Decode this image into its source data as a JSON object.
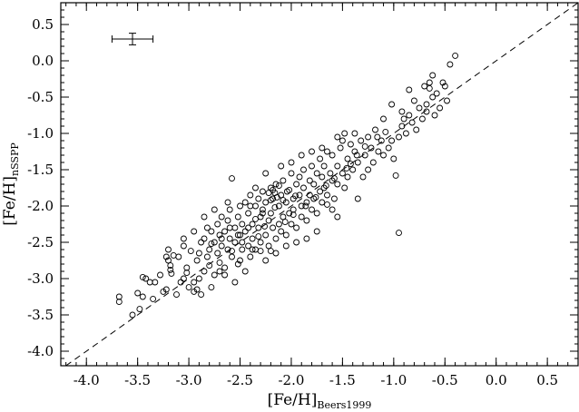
{
  "chart_data": {
    "type": "scatter",
    "xlabel": {
      "main": "[Fe/H]",
      "sub": "Beers1999"
    },
    "ylabel": {
      "main": "[Fe/H]",
      "sub": "nSSPP"
    },
    "xlim": [
      -4.25,
      0.8
    ],
    "ylim": [
      -4.2,
      0.8
    ],
    "x_ticks": [
      {
        "value": -4.0,
        "label": "-4.0"
      },
      {
        "value": -3.5,
        "label": "-3.5"
      },
      {
        "value": -3.0,
        "label": "-3.0"
      },
      {
        "value": -2.5,
        "label": "-2.5"
      },
      {
        "value": -2.0,
        "label": "-2.0"
      },
      {
        "value": -1.5,
        "label": "-1.5"
      },
      {
        "value": -1.0,
        "label": "-1.0"
      },
      {
        "value": -0.5,
        "label": "-0.5"
      },
      {
        "value": 0.0,
        "label": "0.0"
      },
      {
        "value": 0.5,
        "label": "0.5"
      }
    ],
    "y_ticks": [
      {
        "value": 0.5,
        "label": "0.5"
      },
      {
        "value": 0.0,
        "label": "0.0"
      },
      {
        "value": -0.5,
        "label": "-0.5"
      },
      {
        "value": -1.0,
        "label": "-1.0"
      },
      {
        "value": -1.5,
        "label": "-1.5"
      },
      {
        "value": -2.0,
        "label": "-2.0"
      },
      {
        "value": -2.5,
        "label": "-2.5"
      },
      {
        "value": -3.0,
        "label": "-3.0"
      },
      {
        "value": -3.5,
        "label": "-3.5"
      },
      {
        "value": -4.0,
        "label": "-4.0"
      }
    ],
    "grid": false,
    "reference_line": {
      "style": "dashed",
      "equation": "y = x"
    },
    "error_bar": {
      "x": -3.55,
      "y": 0.3,
      "x_err": 0.2,
      "y_err": 0.08
    },
    "series": [
      {
        "points": [
          [
            -3.68,
            -3.25
          ],
          [
            -3.68,
            -3.32
          ],
          [
            -3.55,
            -3.5
          ],
          [
            -3.48,
            -3.42
          ],
          [
            -3.45,
            -3.25
          ],
          [
            -3.5,
            -3.2
          ],
          [
            -3.45,
            -2.98
          ],
          [
            -3.42,
            -3.0
          ],
          [
            -3.35,
            -3.28
          ],
          [
            -3.33,
            -3.05
          ],
          [
            -3.25,
            -3.18
          ],
          [
            -3.22,
            -3.15
          ],
          [
            -3.22,
            -2.7
          ],
          [
            -3.2,
            -2.75
          ],
          [
            -3.18,
            -2.82
          ],
          [
            -3.18,
            -2.88
          ],
          [
            -3.17,
            -2.93
          ],
          [
            -3.2,
            -2.6
          ],
          [
            -3.15,
            -2.68
          ],
          [
            -3.08,
            -3.05
          ],
          [
            -3.05,
            -3.0
          ],
          [
            -3.05,
            -2.55
          ],
          [
            -3.02,
            -2.85
          ],
          [
            -3.02,
            -2.92
          ],
          [
            -3.0,
            -3.12
          ],
          [
            -2.95,
            -3.05
          ],
          [
            -2.95,
            -3.18
          ],
          [
            -2.92,
            -3.15
          ],
          [
            -2.92,
            -2.75
          ],
          [
            -2.9,
            -2.65
          ],
          [
            -2.88,
            -3.22
          ],
          [
            -2.88,
            -2.5
          ],
          [
            -2.85,
            -2.45
          ],
          [
            -2.85,
            -2.9
          ],
          [
            -2.82,
            -2.7
          ],
          [
            -2.82,
            -2.3
          ],
          [
            -2.8,
            -2.6
          ],
          [
            -2.8,
            -2.82
          ],
          [
            -2.78,
            -3.12
          ],
          [
            -2.78,
            -2.35
          ],
          [
            -2.75,
            -2.5
          ],
          [
            -2.75,
            -2.95
          ],
          [
            -2.72,
            -2.65
          ],
          [
            -2.72,
            -2.25
          ],
          [
            -2.7,
            -2.4
          ],
          [
            -2.7,
            -2.78
          ],
          [
            -2.68,
            -2.15
          ],
          [
            -2.68,
            -2.55
          ],
          [
            -2.65,
            -2.85
          ],
          [
            -2.65,
            -2.35
          ],
          [
            -2.62,
            -2.6
          ],
          [
            -2.62,
            -2.2
          ],
          [
            -2.6,
            -2.45
          ],
          [
            -2.6,
            -2.05
          ],
          [
            -2.58,
            -1.62
          ],
          [
            -2.58,
            -2.7
          ],
          [
            -2.55,
            -2.3
          ],
          [
            -2.55,
            -2.5
          ],
          [
            -2.52,
            -2.15
          ],
          [
            -2.52,
            -2.8
          ],
          [
            -2.5,
            -2.0
          ],
          [
            -2.5,
            -2.4
          ],
          [
            -2.48,
            -2.6
          ],
          [
            -2.48,
            -2.25
          ],
          [
            -2.45,
            -1.95
          ],
          [
            -2.45,
            -2.35
          ],
          [
            -2.42,
            -2.1
          ],
          [
            -2.42,
            -2.55
          ],
          [
            -2.4,
            -2.7
          ],
          [
            -2.4,
            -1.85
          ],
          [
            -2.38,
            -2.25
          ],
          [
            -2.38,
            -2.45
          ],
          [
            -2.35,
            -2.0
          ],
          [
            -2.35,
            -2.6
          ],
          [
            -2.32,
            -1.9
          ],
          [
            -2.32,
            -2.3
          ],
          [
            -2.3,
            -2.15
          ],
          [
            -2.3,
            -2.5
          ],
          [
            -2.28,
            -1.8
          ],
          [
            -2.28,
            -2.05
          ],
          [
            -2.25,
            -2.4
          ],
          [
            -2.25,
            -1.95
          ],
          [
            -2.22,
            -2.2
          ],
          [
            -2.22,
            -2.55
          ],
          [
            -2.2,
            -1.75
          ],
          [
            -2.2,
            -2.1
          ],
          [
            -2.18,
            -2.3
          ],
          [
            -2.18,
            -1.9
          ],
          [
            -2.15,
            -2.45
          ],
          [
            -2.15,
            -1.7
          ],
          [
            -2.12,
            -2.0
          ],
          [
            -2.12,
            -2.25
          ],
          [
            -2.1,
            -1.85
          ],
          [
            -2.1,
            -2.35
          ],
          [
            -2.08,
            -1.65
          ],
          [
            -2.08,
            -2.15
          ],
          [
            -2.05,
            -1.95
          ],
          [
            -2.05,
            -2.4
          ],
          [
            -2.02,
            -1.78
          ],
          [
            -2.02,
            -2.1
          ],
          [
            -2.0,
            -1.55
          ],
          [
            -2.0,
            -2.25
          ],
          [
            -1.98,
            -1.9
          ],
          [
            -1.98,
            -2.05
          ],
          [
            -1.95,
            -1.7
          ],
          [
            -1.95,
            -2.3
          ],
          [
            -1.92,
            -1.85
          ],
          [
            -1.92,
            -1.6
          ],
          [
            -1.9,
            -2.0
          ],
          [
            -1.9,
            -2.15
          ],
          [
            -1.88,
            -1.75
          ],
          [
            -1.88,
            -1.5
          ],
          [
            -1.85,
            -1.95
          ],
          [
            -1.85,
            -2.2
          ],
          [
            -1.82,
            -1.65
          ],
          [
            -1.82,
            -1.85
          ],
          [
            -1.8,
            -1.45
          ],
          [
            -1.8,
            -2.05
          ],
          [
            -1.78,
            -1.7
          ],
          [
            -1.78,
            -1.9
          ],
          [
            -1.75,
            -1.55
          ],
          [
            -1.75,
            -2.1
          ],
          [
            -1.72,
            -1.8
          ],
          [
            -1.72,
            -1.35
          ],
          [
            -1.7,
            -1.6
          ],
          [
            -1.7,
            -1.95
          ],
          [
            -1.68,
            -1.45
          ],
          [
            -1.68,
            -1.75
          ],
          [
            -1.65,
            -1.25
          ],
          [
            -1.65,
            -1.85
          ],
          [
            -1.62,
            -1.55
          ],
          [
            -1.6,
            -1.65
          ],
          [
            -1.6,
            -1.3
          ],
          [
            -1.58,
            -1.9
          ],
          [
            -1.55,
            -1.45
          ],
          [
            -1.55,
            -1.7
          ],
          [
            -1.52,
            -1.2
          ],
          [
            -1.5,
            -1.55
          ],
          [
            -1.5,
            -1.1
          ],
          [
            -1.48,
            -1.75
          ],
          [
            -1.45,
            -1.35
          ],
          [
            -1.45,
            -1.6
          ],
          [
            -1.42,
            -1.15
          ],
          [
            -1.4,
            -1.5
          ],
          [
            -1.38,
            -1.25
          ],
          [
            -1.38,
            -1.0
          ],
          [
            -1.35,
            -1.4
          ],
          [
            -1.32,
            -1.1
          ],
          [
            -1.3,
            -1.6
          ],
          [
            -1.28,
            -1.3
          ],
          [
            -1.25,
            -1.05
          ],
          [
            -1.25,
            -1.5
          ],
          [
            -1.22,
            -1.2
          ],
          [
            -1.2,
            -1.4
          ],
          [
            -1.18,
            -0.95
          ],
          [
            -1.15,
            -1.25
          ],
          [
            -1.12,
            -1.1
          ],
          [
            -1.1,
            -1.3
          ],
          [
            -1.08,
            -0.98
          ],
          [
            -1.05,
            -1.2
          ],
          [
            -1.02,
            -1.1
          ],
          [
            -1.0,
            -1.35
          ],
          [
            -0.98,
            -1.58
          ],
          [
            -0.95,
            -2.37
          ],
          [
            -0.95,
            -1.05
          ],
          [
            -0.92,
            -0.9
          ],
          [
            -0.9,
            -0.8
          ],
          [
            -0.88,
            -1.0
          ],
          [
            -0.85,
            -0.75
          ],
          [
            -0.85,
            -0.4
          ],
          [
            -0.82,
            -0.85
          ],
          [
            -0.8,
            -0.55
          ],
          [
            -0.78,
            -0.95
          ],
          [
            -0.75,
            -0.65
          ],
          [
            -0.72,
            -0.8
          ],
          [
            -0.7,
            -0.35
          ],
          [
            -0.68,
            -0.6
          ],
          [
            -0.68,
            -0.7
          ],
          [
            -0.65,
            -0.3
          ],
          [
            -0.62,
            -0.5
          ],
          [
            -0.6,
            -0.75
          ],
          [
            -0.58,
            -0.45
          ],
          [
            -0.55,
            -0.65
          ],
          [
            -0.52,
            -0.3
          ],
          [
            -0.5,
            -0.35
          ],
          [
            -0.48,
            -0.55
          ],
          [
            -0.45,
            -0.05
          ],
          [
            -0.62,
            -0.2
          ],
          [
            -0.4,
            0.07
          ],
          [
            -0.65,
            -0.38
          ],
          [
            -1.1,
            -0.8
          ],
          [
            -1.02,
            -0.6
          ],
          [
            -0.92,
            -0.7
          ],
          [
            -2.65,
            -2.95
          ],
          [
            -2.9,
            -3.0
          ],
          [
            -2.7,
            -2.9
          ],
          [
            -2.25,
            -2.75
          ],
          [
            -2.15,
            -2.65
          ],
          [
            -1.95,
            -2.5
          ],
          [
            -1.75,
            -2.35
          ],
          [
            -1.55,
            -2.15
          ],
          [
            -1.35,
            -1.9
          ],
          [
            -2.3,
            -2.62
          ],
          [
            -2.05,
            -2.55
          ],
          [
            -2.45,
            -2.9
          ],
          [
            -2.55,
            -3.05
          ],
          [
            -1.85,
            -2.45
          ],
          [
            -1.6,
            -2.05
          ],
          [
            -2.85,
            -2.15
          ],
          [
            -2.95,
            -2.35
          ],
          [
            -3.05,
            -2.45
          ],
          [
            -2.62,
            -1.95
          ],
          [
            -2.75,
            -2.05
          ],
          [
            -2.4,
            -2.0
          ],
          [
            -2.35,
            -1.75
          ],
          [
            -2.25,
            -1.55
          ],
          [
            -2.1,
            -1.45
          ],
          [
            -2.0,
            -1.4
          ],
          [
            -1.9,
            -1.3
          ],
          [
            -1.8,
            -1.25
          ],
          [
            -1.7,
            -1.2
          ],
          [
            -1.55,
            -1.05
          ],
          [
            -1.48,
            -1.0
          ],
          [
            -1.42,
            -1.42
          ],
          [
            -2.2,
            -2.62
          ],
          [
            -1.65,
            -1.98
          ],
          [
            -2.5,
            -2.75
          ],
          [
            -3.1,
            -2.7
          ],
          [
            -2.98,
            -2.62
          ],
          [
            -2.12,
            -1.72
          ],
          [
            -2.18,
            -1.78
          ],
          [
            -2.16,
            -1.82
          ],
          [
            -2.14,
            -1.88
          ],
          [
            -2.2,
            -1.92
          ],
          [
            -2.22,
            -1.82
          ],
          [
            -2.16,
            -2.02
          ],
          [
            -2.08,
            -1.92
          ],
          [
            -2.04,
            -1.8
          ],
          [
            -1.96,
            -1.86
          ],
          [
            -2.28,
            -2.1
          ],
          [
            -2.35,
            -2.18
          ],
          [
            -2.42,
            -2.3
          ],
          [
            -2.52,
            -2.4
          ],
          [
            -2.6,
            -2.3
          ],
          [
            -2.68,
            -2.45
          ],
          [
            -2.78,
            -2.52
          ],
          [
            -2.58,
            -2.62
          ],
          [
            -2.48,
            -2.5
          ],
          [
            -2.38,
            -2.6
          ],
          [
            -2.32,
            -2.42
          ],
          [
            -2.26,
            -2.28
          ],
          [
            -2.06,
            -2.22
          ],
          [
            -1.98,
            -2.12
          ],
          [
            -1.86,
            -2.0
          ],
          [
            -1.76,
            -1.88
          ],
          [
            -1.66,
            -1.72
          ],
          [
            -1.58,
            -1.62
          ],
          [
            -1.46,
            -1.48
          ],
          [
            -1.36,
            -1.3
          ],
          [
            -1.28,
            -1.18
          ],
          [
            -1.16,
            -1.05
          ],
          [
            -3.28,
            -2.95
          ],
          [
            -3.38,
            -3.05
          ],
          [
            -3.12,
            -3.22
          ]
        ]
      }
    ]
  }
}
